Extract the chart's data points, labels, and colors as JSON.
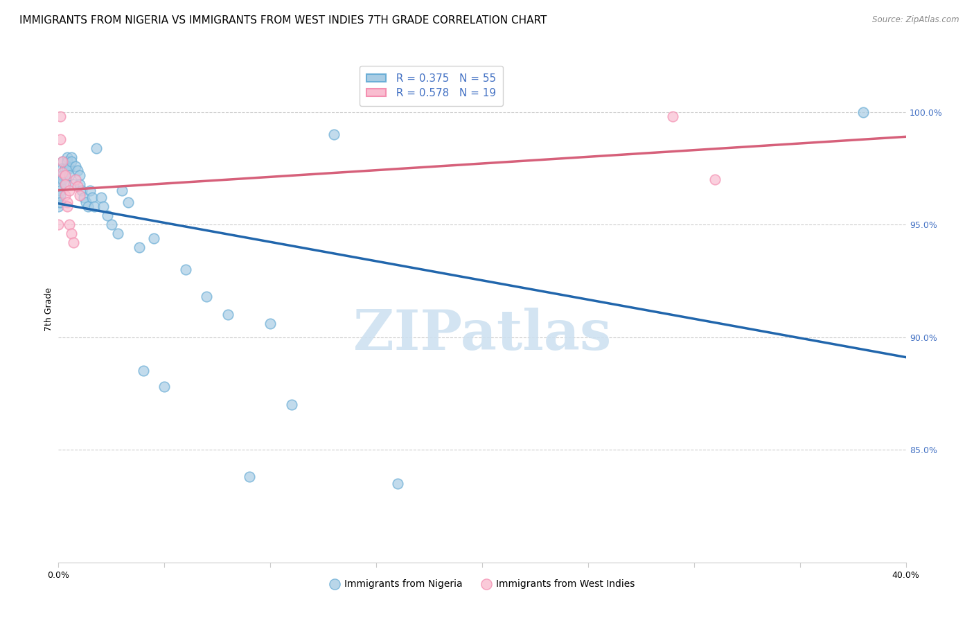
{
  "title": "IMMIGRANTS FROM NIGERIA VS IMMIGRANTS FROM WEST INDIES 7TH GRADE CORRELATION CHART",
  "source": "Source: ZipAtlas.com",
  "ylabel": "7th Grade",
  "ylabel_right_ticks": [
    "100.0%",
    "95.0%",
    "90.0%",
    "85.0%"
  ],
  "ylabel_right_vals": [
    1.0,
    0.95,
    0.9,
    0.85
  ],
  "xlim": [
    0.0,
    0.4
  ],
  "ylim": [
    0.8,
    1.025
  ],
  "watermark": "ZIPatlas",
  "legend_blue_r": "R = 0.375",
  "legend_blue_n": "N = 55",
  "legend_pink_r": "R = 0.578",
  "legend_pink_n": "N = 19",
  "nigeria_x": [
    0.0,
    0.0,
    0.0,
    0.001,
    0.001,
    0.001,
    0.001,
    0.001,
    0.002,
    0.002,
    0.002,
    0.002,
    0.003,
    0.003,
    0.003,
    0.004,
    0.004,
    0.004,
    0.005,
    0.005,
    0.006,
    0.006,
    0.007,
    0.008,
    0.009,
    0.01,
    0.01,
    0.011,
    0.012,
    0.013,
    0.014,
    0.015,
    0.016,
    0.017,
    0.018,
    0.02,
    0.021,
    0.023,
    0.025,
    0.028,
    0.03,
    0.033,
    0.038,
    0.04,
    0.045,
    0.05,
    0.06,
    0.07,
    0.08,
    0.09,
    0.1,
    0.11,
    0.13,
    0.16,
    0.38
  ],
  "nigeria_y": [
    0.962,
    0.96,
    0.958,
    0.97,
    0.968,
    0.965,
    0.963,
    0.96,
    0.978,
    0.975,
    0.972,
    0.97,
    0.975,
    0.972,
    0.968,
    0.98,
    0.978,
    0.975,
    0.975,
    0.972,
    0.98,
    0.978,
    0.968,
    0.976,
    0.974,
    0.972,
    0.968,
    0.965,
    0.962,
    0.96,
    0.958,
    0.965,
    0.962,
    0.958,
    0.984,
    0.962,
    0.958,
    0.954,
    0.95,
    0.946,
    0.965,
    0.96,
    0.94,
    0.885,
    0.944,
    0.878,
    0.93,
    0.918,
    0.91,
    0.838,
    0.906,
    0.87,
    0.99,
    0.835,
    1.0
  ],
  "westindies_x": [
    0.0,
    0.001,
    0.001,
    0.002,
    0.002,
    0.003,
    0.003,
    0.003,
    0.004,
    0.004,
    0.005,
    0.005,
    0.006,
    0.007,
    0.008,
    0.009,
    0.01,
    0.29,
    0.31
  ],
  "westindies_y": [
    0.95,
    0.998,
    0.988,
    0.978,
    0.973,
    0.972,
    0.968,
    0.963,
    0.96,
    0.958,
    0.965,
    0.95,
    0.946,
    0.942,
    0.97,
    0.967,
    0.963,
    0.998,
    0.97
  ],
  "blue_color": "#a8cce4",
  "blue_edge_color": "#6baed6",
  "pink_color": "#f9bdd0",
  "pink_edge_color": "#f48fb1",
  "blue_line_color": "#2166ac",
  "pink_line_color": "#d6607a",
  "grid_color": "#cccccc",
  "title_fontsize": 11,
  "axis_label_fontsize": 9,
  "tick_fontsize": 9,
  "right_tick_color": "#4472c4"
}
